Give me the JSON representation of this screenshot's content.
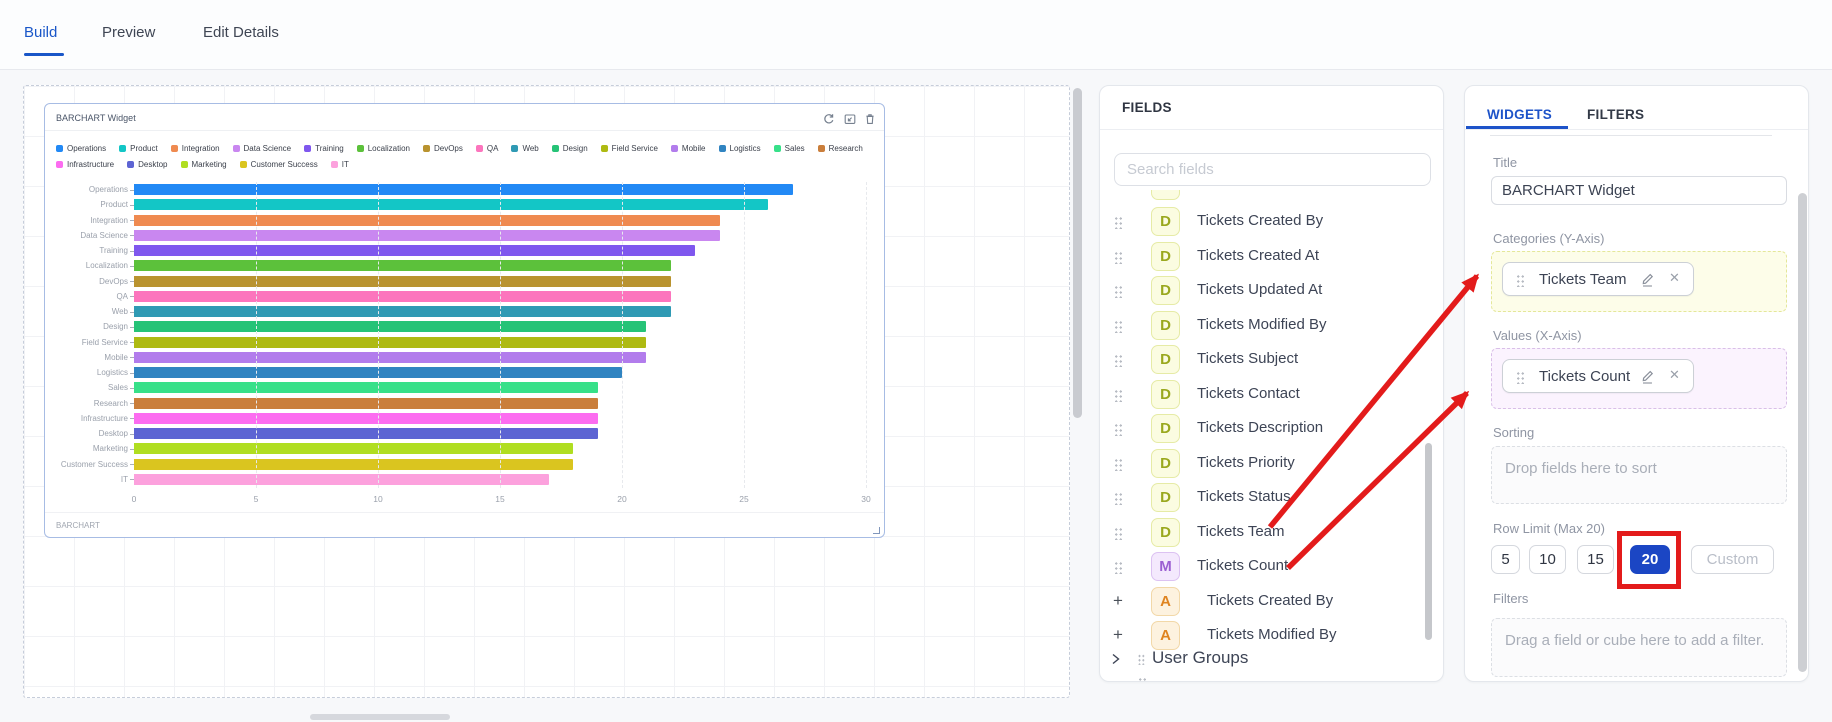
{
  "page_tabs": {
    "items": [
      {
        "label": "Build",
        "active": true
      },
      {
        "label": "Preview",
        "active": false
      },
      {
        "label": "Edit Details",
        "active": false
      }
    ]
  },
  "canvas": {
    "widget": {
      "title": "BARCHART Widget",
      "footer": "BARCHART",
      "header_icons": [
        "refresh-icon",
        "expand-icon",
        "trash-icon"
      ]
    }
  },
  "chart_data": {
    "type": "bar",
    "orientation": "horizontal",
    "title": "BARCHART Widget",
    "categories": [
      "Operations",
      "Product",
      "Integration",
      "Data Science",
      "Training",
      "Localization",
      "DevOps",
      "QA",
      "Web",
      "Design",
      "Field Service",
      "Mobile",
      "Logistics",
      "Sales",
      "Research",
      "Infrastructure",
      "Desktop",
      "Marketing",
      "Customer Success",
      "IT"
    ],
    "values": [
      27,
      26,
      24,
      24,
      23,
      22,
      22,
      22,
      22,
      21,
      21,
      21,
      20,
      19,
      19,
      19,
      19,
      18,
      18,
      17
    ],
    "colors": [
      "#2289f5",
      "#13c6c6",
      "#ef8a50",
      "#c987f0",
      "#7f57ee",
      "#5cc13b",
      "#b9932f",
      "#fc75bd",
      "#2f9ab4",
      "#26c377",
      "#aeba12",
      "#b27cec",
      "#3084c1",
      "#37e089",
      "#ca7e3b",
      "#fc6cf0",
      "#5d64d3",
      "#b0de21",
      "#dac51f",
      "#fca1dd"
    ],
    "xlabel": "",
    "ylabel": "",
    "xlim": [
      0,
      30
    ],
    "xticks": [
      0,
      5,
      10,
      15,
      20,
      25,
      30
    ],
    "grid": true,
    "legend_position": "top"
  },
  "fields_panel": {
    "title": "FIELDS",
    "search_placeholder": "Search fields",
    "items": [
      {
        "prefix": "drag",
        "badge": "D",
        "label": "Tickets Created By"
      },
      {
        "prefix": "drag",
        "badge": "D",
        "label": "Tickets Created At"
      },
      {
        "prefix": "drag",
        "badge": "D",
        "label": "Tickets Updated At"
      },
      {
        "prefix": "drag",
        "badge": "D",
        "label": "Tickets Modified By"
      },
      {
        "prefix": "drag",
        "badge": "D",
        "label": "Tickets Subject"
      },
      {
        "prefix": "drag",
        "badge": "D",
        "label": "Tickets Contact"
      },
      {
        "prefix": "drag",
        "badge": "D",
        "label": "Tickets Description"
      },
      {
        "prefix": "drag",
        "badge": "D",
        "label": "Tickets Priority"
      },
      {
        "prefix": "drag",
        "badge": "D",
        "label": "Tickets Status"
      },
      {
        "prefix": "drag",
        "badge": "D",
        "label": "Tickets Team"
      },
      {
        "prefix": "drag",
        "badge": "M",
        "label": "Tickets Count"
      },
      {
        "prefix": "plus",
        "badge": "A",
        "label": "Tickets Created By"
      },
      {
        "prefix": "plus",
        "badge": "A",
        "label": "Tickets Modified By"
      }
    ],
    "group_label": "User Groups"
  },
  "widgets_panel": {
    "tabs": [
      {
        "label": "WIDGETS",
        "active": true
      },
      {
        "label": "FILTERS",
        "active": false
      }
    ],
    "title_label": "Title",
    "title_value": "BARCHART Widget",
    "categories_label": "Categories (Y-Axis)",
    "categories_pill": "Tickets Team",
    "values_label": "Values (X-Axis)",
    "values_pill": "Tickets Count",
    "sorting_label": "Sorting",
    "sorting_placeholder": "Drop fields here to sort",
    "row_limit_label": "Row Limit (Max 20)",
    "row_limit_options": [
      "5",
      "10",
      "15",
      "20",
      "Custom"
    ],
    "row_limit_selected": "20",
    "filters_label": "Filters",
    "filters_placeholder": "Drag a field or cube here to add a filter."
  },
  "annotations": {
    "color": "#e31b1b",
    "arrow_to_categories": {
      "from": "tickets-count-field",
      "to": "categories-drop-zone"
    },
    "arrow_to_values": {
      "from": "tickets-count-field",
      "to": "values-drop-zone"
    },
    "highlight_box": {
      "around": "row-limit-20-button"
    }
  },
  "colors": {
    "accent_blue": "#1956c8",
    "selected_row_limit": "#1b46c4",
    "annotation_red": "#e31b1b"
  }
}
